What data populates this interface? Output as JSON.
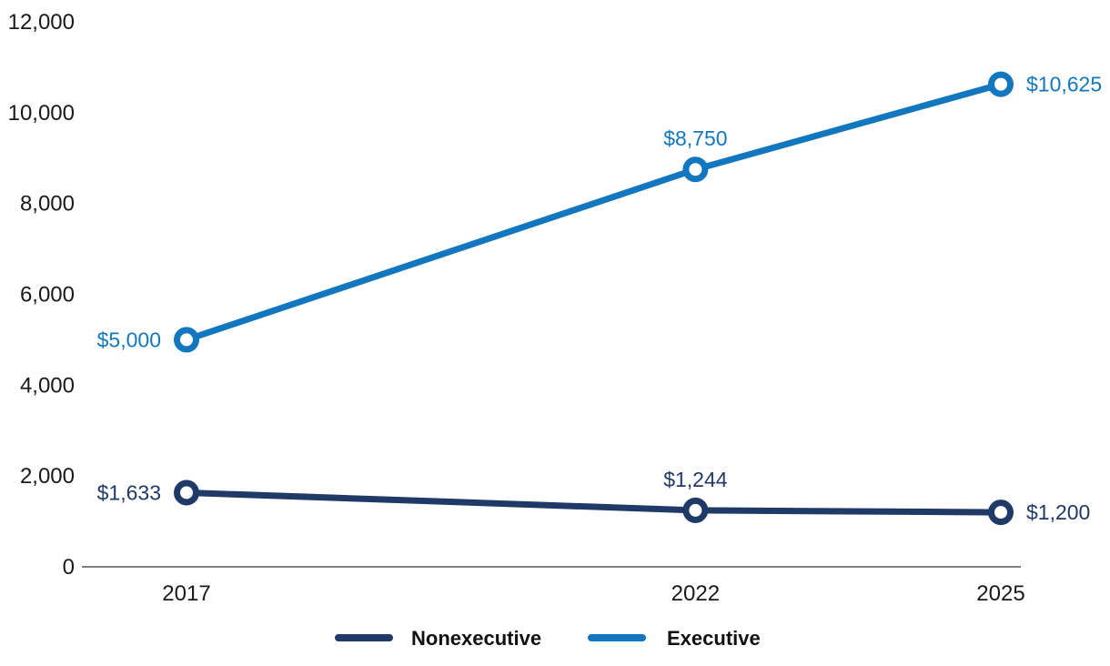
{
  "chart_data": {
    "type": "line",
    "title": "",
    "xlabel": "",
    "ylabel": "",
    "x": [
      2017,
      2022,
      2025
    ],
    "x_tick_labels": [
      "2017",
      "2022",
      "2025"
    ],
    "ylim": [
      0,
      12000
    ],
    "y_ticks": [
      0,
      2000,
      4000,
      6000,
      8000,
      10000,
      12000
    ],
    "y_tick_labels": [
      "0",
      "2,000",
      "4,000",
      "6,000",
      "8,000",
      "10,000",
      "12,000"
    ],
    "grid": false,
    "legend_position": "bottom",
    "axis_color": "#7f7f7f",
    "text_color": "#1a1a1a",
    "legend_text_color": "#111111",
    "background_color": "#ffffff",
    "series": [
      {
        "name": "Nonexecutive",
        "color": "#1f3a66",
        "values": [
          1633,
          1244,
          1200
        ],
        "point_labels": [
          "$1,633",
          "$1,244",
          "$1,200"
        ],
        "point_label_positions": [
          "left",
          "above",
          "right"
        ]
      },
      {
        "name": "Executive",
        "color": "#1277be",
        "values": [
          5000,
          8750,
          10625
        ],
        "point_labels": [
          "$5,000",
          "$8,750",
          "$10,625"
        ],
        "point_label_positions": [
          "left",
          "above",
          "right"
        ]
      }
    ],
    "legend": [
      {
        "label": "Nonexecutive",
        "color": "#1f3a66"
      },
      {
        "label": "Executive",
        "color": "#1277be"
      }
    ]
  }
}
